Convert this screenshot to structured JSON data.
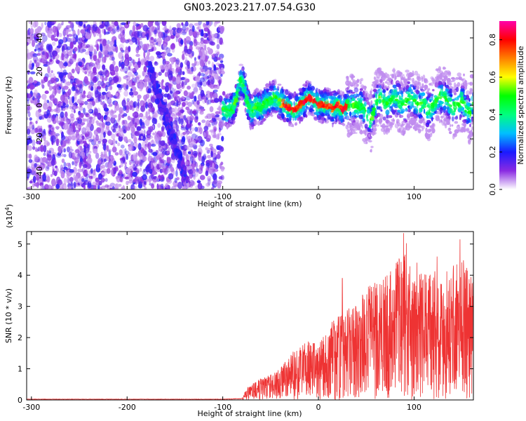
{
  "title": "GN03.2023.217.07.54.G30",
  "chart_data": [
    {
      "type": "heatmap",
      "name": "spectrogram",
      "xlabel": "Height of straight line (km)",
      "ylabel": "Frequency (Hz)",
      "xlim": [
        -305,
        162
      ],
      "ylim": [
        -50,
        50
      ],
      "xticks": [
        -300,
        -200,
        -100,
        0,
        100
      ],
      "yticks": [
        -40,
        -20,
        0,
        20,
        40
      ],
      "noise_region_x": [
        -305,
        -100
      ],
      "ridge": {
        "x": [
          -100,
          -95,
          -90,
          -85,
          -82,
          -78,
          -75,
          -70,
          -65,
          -60,
          -55,
          -50,
          -45,
          -40,
          -35,
          -30,
          -25,
          -20,
          -15,
          -10,
          -5,
          0,
          5,
          10,
          15,
          20,
          25,
          30,
          35,
          40,
          45,
          50,
          55,
          60,
          65,
          70,
          75,
          80,
          85,
          90,
          95,
          100,
          105,
          110,
          115,
          120,
          125,
          130,
          135,
          140,
          145,
          150,
          155,
          160
        ],
        "y": [
          -2,
          -3,
          -2,
          5,
          15,
          12,
          3,
          -5,
          0,
          -2,
          2,
          3,
          5,
          2,
          0,
          -2,
          -3,
          0,
          2,
          5,
          3,
          0,
          0,
          0,
          -2,
          0,
          -3,
          0,
          0,
          0,
          0,
          -5,
          -10,
          2,
          5,
          0,
          3,
          5,
          2,
          0,
          5,
          3,
          0,
          2,
          -3,
          0,
          5,
          5,
          3,
          -2,
          0,
          3,
          -3,
          -5
        ]
      },
      "colorbar": {
        "label": "Normalized spectral amplitude",
        "range": [
          0,
          0.9
        ],
        "ticks": [
          0.0,
          0.2,
          0.4,
          0.6,
          0.8
        ],
        "tick_labels": [
          "0.0",
          "0.2",
          "0.4",
          "0.6",
          "0.8"
        ],
        "colors": [
          "#ffffff",
          "#8a2be2",
          "#1a1aff",
          "#00bfff",
          "#00ff7f",
          "#00ff00",
          "#ffff00",
          "#ff8000",
          "#ff0000",
          "#ff00aa"
        ]
      }
    },
    {
      "type": "line",
      "name": "snr",
      "xlabel": "Height of straight line (km)",
      "ylabel": "SNR (10 * v/v)",
      "scale_label": "(x10",
      "scale_exp": "4",
      "scale_close": ")",
      "xlim": [
        -305,
        162
      ],
      "ylim": [
        0,
        5.4
      ],
      "xticks": [
        -300,
        -200,
        -100,
        0,
        100
      ],
      "yticks": [
        0,
        1,
        2,
        3,
        4,
        5
      ],
      "color": "#ee3333",
      "envelope": {
        "x": [
          -305,
          -100,
          -80,
          -75,
          -60,
          -40,
          -30,
          -20,
          -10,
          0,
          10,
          20,
          30,
          40,
          50,
          60,
          70,
          80,
          90,
          100,
          110,
          120,
          130,
          140,
          150,
          162
        ],
        "y": [
          0.03,
          0.03,
          0.05,
          0.4,
          0.7,
          1.0,
          1.5,
          1.7,
          1.9,
          2.0,
          2.3,
          2.8,
          3.0,
          3.2,
          3.6,
          3.8,
          4.0,
          4.3,
          5.3,
          4.2,
          4.0,
          4.3,
          4.0,
          4.3,
          4.6,
          4.0
        ]
      },
      "spikes": [
        {
          "x": 25,
          "y": 3.9
        },
        {
          "x": 75,
          "y": 4.0
        },
        {
          "x": 89,
          "y": 5.35
        },
        {
          "x": 103,
          "y": 4.4
        },
        {
          "x": 124,
          "y": 4.6
        },
        {
          "x": 148,
          "y": 5.15
        }
      ]
    }
  ]
}
